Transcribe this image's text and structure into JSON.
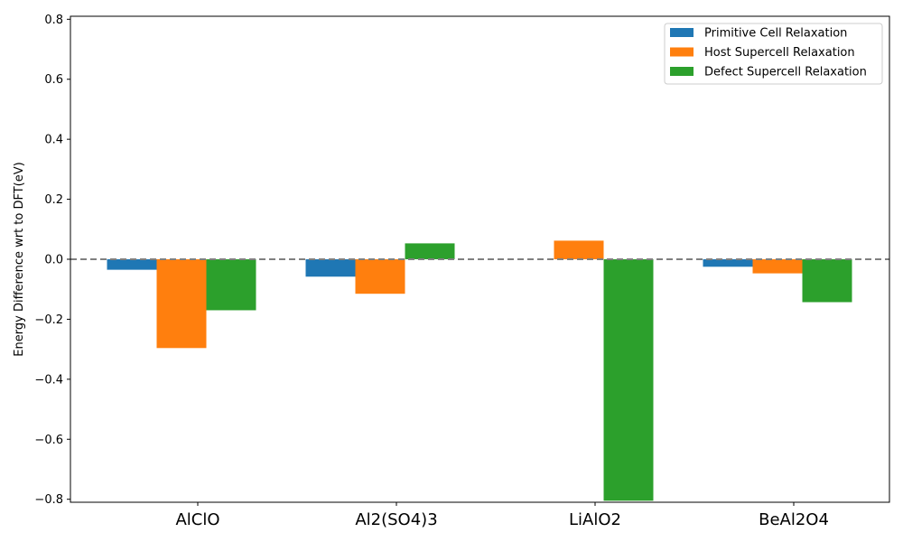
{
  "chart_data": {
    "type": "bar",
    "title": "",
    "xlabel": "",
    "ylabel": "Energy Difference wrt to DFT(eV)",
    "categories": [
      "AlClO",
      "Al2(SO4)3",
      "LiAlO2",
      "BeAl2O4"
    ],
    "series": [
      {
        "name": "Primitive Cell Relaxation",
        "color": "#1f77b4",
        "values": [
          -0.035,
          -0.058,
          0.0,
          -0.025
        ]
      },
      {
        "name": "Host Supercell Relaxation",
        "color": "#ff7f0e",
        "values": [
          -0.296,
          -0.115,
          0.062,
          -0.047
        ]
      },
      {
        "name": "Defect Supercell Relaxation",
        "color": "#2ca02c",
        "values": [
          -0.17,
          0.053,
          -0.805,
          -0.143
        ]
      }
    ],
    "ylim": [
      -0.81,
      0.81
    ],
    "yticks": [
      -0.8,
      -0.6,
      -0.4,
      -0.2,
      0.0,
      0.2,
      0.4,
      0.6,
      0.8
    ],
    "ytick_labels": [
      "−0.8",
      "−0.6",
      "−0.4",
      "−0.2",
      "0.0",
      "0.2",
      "0.4",
      "0.6",
      "0.8"
    ],
    "reference_line": {
      "y": 0.0,
      "style": "dashed",
      "color": "#808080"
    },
    "grid": false,
    "legend_position": "top-right"
  }
}
